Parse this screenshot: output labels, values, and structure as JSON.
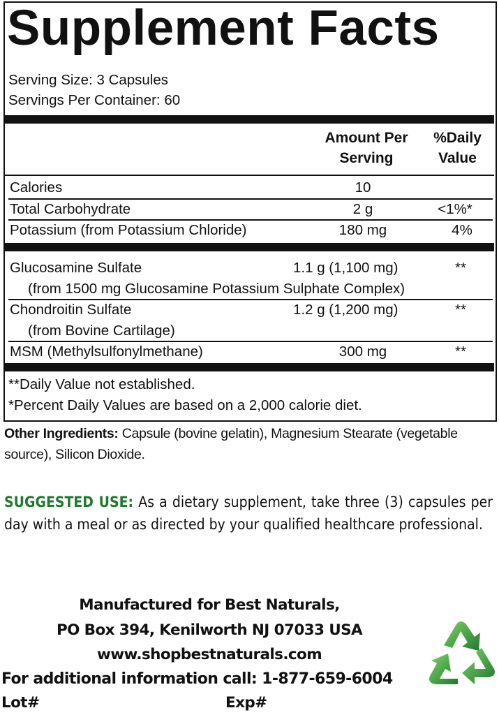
{
  "title": "Supplement Facts",
  "serving_size": "Serving Size: 3 Capsules",
  "servings_per_container": "Servings Per Container: 60",
  "header": {
    "amount_line1": "Amount Per",
    "amount_line2": "Serving",
    "dv_line1": "%Daily",
    "dv_line2": "Value"
  },
  "rows": [
    {
      "name": "Calories",
      "amount": "10",
      "dv": ""
    },
    {
      "name": "Total Carbohydrate",
      "amount": "2 g",
      "dv": "<1%*"
    },
    {
      "name": "Potassium (from Potassium Chloride)",
      "amount": "180 mg",
      "dv": "4%"
    },
    {
      "name": "Glucosamine Sulfate",
      "amount": "1.1 g (1,100 mg)",
      "dv": "**",
      "sub": "(from 1500 mg Glucosamine Potassium Sulphate Complex)"
    },
    {
      "name": "Chondroitin Sulfate",
      "amount": "1.2 g (1,200 mg)",
      "dv": "**",
      "sub": "(from Bovine Cartilage)"
    },
    {
      "name": "MSM (Methylsulfonylmethane)",
      "amount": "300 mg",
      "dv": "**"
    }
  ],
  "footnotes": [
    "**Daily Value not established.",
    "*Percent Daily Values are based on a 2,000 calorie diet."
  ],
  "other_ingredients": {
    "label": "Other Ingredients:",
    "text": " Capsule (bovine gelatin), Magnesium Stearate (vegetable source), Silicon Dioxide."
  },
  "suggested_use": {
    "label": "SUGGESTED USE:",
    "text": " As a dietary supplement, take three (3) capsules per day with a meal or as directed by your qualified healthcare professional."
  },
  "manufacturer": {
    "line1": "Manufactured for Best Naturals,",
    "line2": "PO Box 394, Kenilworth NJ 07033 USA",
    "website": "www.shopbestnaturals.com",
    "phone_line": "For additional information call: 1-877-659-6004",
    "lot": "Lot#",
    "exp": "Exp#"
  },
  "icons": {
    "recycle": "recycle-icon"
  },
  "colors": {
    "accent_green": "#1f7a2e",
    "recycle_green": "#3aa845"
  }
}
